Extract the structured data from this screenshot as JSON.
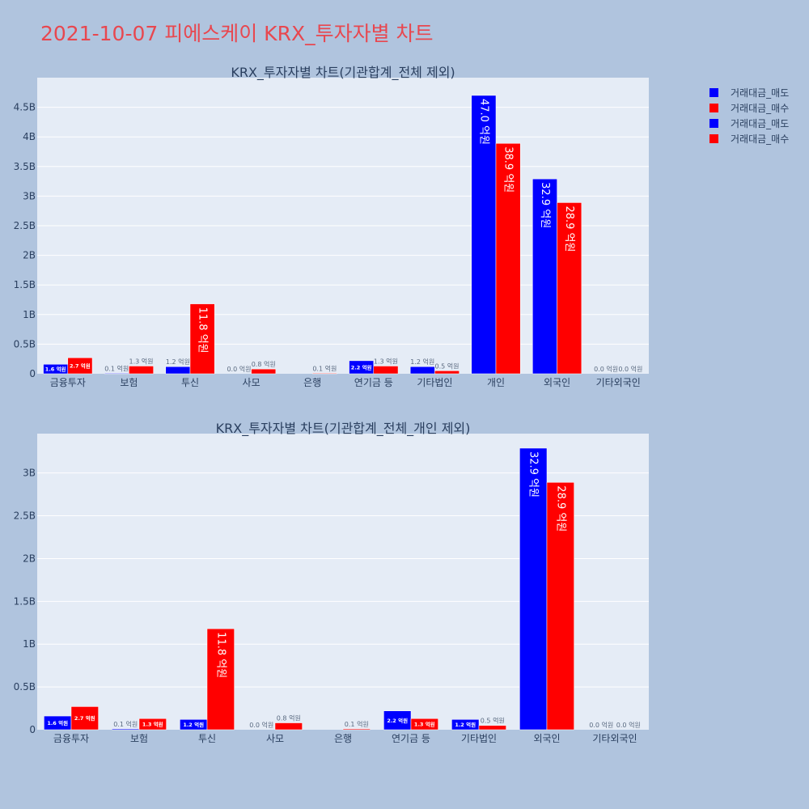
{
  "page_title": "2021-10-07 피에스케이 KRX_투자자별 차트",
  "legend": [
    {
      "label": "거래대금_매도",
      "color": "#0000ff"
    },
    {
      "label": "거래대금_매수",
      "color": "#ff0000"
    },
    {
      "label": "거래대금_매도",
      "color": "#0000ff"
    },
    {
      "label": "거래대금_매수",
      "color": "#ff0000"
    }
  ],
  "chart_data": [
    {
      "type": "bar",
      "title": "KRX_투자자별 차트(기관합계_전체 제외)",
      "categories": [
        "금융투자",
        "보험",
        "투신",
        "사모",
        "은행",
        "연기금 등",
        "기타법인",
        "개인",
        "외국인",
        "기타외국인"
      ],
      "ylim": [
        0,
        5000000000
      ],
      "yticks": [
        0,
        500000000,
        1000000000,
        1500000000,
        2000000000,
        2500000000,
        3000000000,
        3500000000,
        4000000000,
        4500000000
      ],
      "yticklabels": [
        "0",
        "0.5B",
        "1B",
        "1.5B",
        "2B",
        "2.5B",
        "3B",
        "3.5B",
        "4B",
        "4.5B"
      ],
      "grid": true,
      "series": [
        {
          "name": "거래대금_매도",
          "color": "#0000ff",
          "values": [
            160000000,
            10000000,
            120000000,
            0,
            0,
            220000000,
            120000000,
            4700000000,
            3290000000,
            0
          ],
          "labels": [
            "1.6 억원",
            "0.1 억원",
            "1.2 억원",
            "0.0 억원",
            "",
            "2.2 억원",
            "1.2 억원",
            "47.0 억원",
            "32.9 억원",
            "0.0 억원"
          ]
        },
        {
          "name": "거래대금_매수",
          "color": "#ff0000",
          "values": [
            270000000,
            130000000,
            1180000000,
            80000000,
            10000000,
            130000000,
            50000000,
            3890000000,
            2890000000,
            0
          ],
          "labels": [
            "2.7 억원",
            "1.3 억원",
            "11.8 억원",
            "0.8 억원",
            "0.1 억원",
            "1.3 억원",
            "0.5 억원",
            "38.9 억원",
            "28.9 억원",
            "0.0 억원"
          ]
        }
      ]
    },
    {
      "type": "bar",
      "title": "KRX_투자자별 차트(기관합계_전체_개인 제외)",
      "categories": [
        "금융투자",
        "보험",
        "투신",
        "사모",
        "은행",
        "연기금 등",
        "기타법인",
        "외국인",
        "기타외국인"
      ],
      "ylim": [
        0,
        3460000000
      ],
      "yticks": [
        0,
        500000000,
        1000000000,
        1500000000,
        2000000000,
        2500000000,
        3000000000
      ],
      "yticklabels": [
        "0",
        "0.5B",
        "1B",
        "1.5B",
        "2B",
        "2.5B",
        "3B"
      ],
      "grid": true,
      "series": [
        {
          "name": "거래대금_매도",
          "color": "#0000ff",
          "values": [
            160000000,
            10000000,
            120000000,
            0,
            0,
            220000000,
            120000000,
            3290000000,
            0
          ],
          "labels": [
            "1.6 억원",
            "0.1 억원",
            "1.2 억원",
            "0.0 억원",
            "",
            "2.2 억원",
            "1.2 억원",
            "32.9 억원",
            "0.0 억원"
          ]
        },
        {
          "name": "거래대금_매수",
          "color": "#ff0000",
          "values": [
            270000000,
            130000000,
            1180000000,
            80000000,
            10000000,
            130000000,
            50000000,
            2890000000,
            0
          ],
          "labels": [
            "2.7 억원",
            "1.3 억원",
            "11.8 억원",
            "0.8 억원",
            "0.1 억원",
            "1.3 억원",
            "0.5 억원",
            "28.9 억원",
            "0.0 억원"
          ]
        }
      ]
    }
  ]
}
